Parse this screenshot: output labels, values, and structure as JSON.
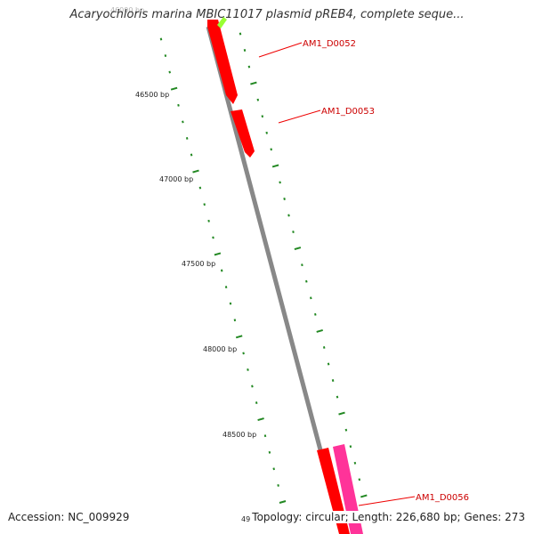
{
  "title": "Acaryochloris marina MBIC11017 plasmid pREB4, complete seque...",
  "accession": "Accession: NC_009929",
  "topology": "Topology: circular; Length: 226,680 bp; Genes: 273",
  "tick_labels": [
    {
      "text": "46000 bp",
      "bp": 46000,
      "faded": true
    },
    {
      "text": "46500 bp",
      "bp": 46500
    },
    {
      "text": "47000 bp",
      "bp": 47000
    },
    {
      "text": "47500 bp",
      "bp": 47500
    },
    {
      "text": "48000 bp",
      "bp": 48000
    },
    {
      "text": "48500 bp",
      "bp": 48500
    },
    {
      "text": "49",
      "bp": 49000,
      "partial": true
    }
  ],
  "genes": [
    {
      "label": "AM1_D0052",
      "strand": "forward",
      "color": "#ff0000"
    },
    {
      "label": "AM1_D0053",
      "strand": "forward",
      "color": "#ff0000"
    },
    {
      "label": "AM1_D0056",
      "strand": "reverse",
      "color": "#ff3399"
    }
  ],
  "colors": {
    "backbone": "#888888",
    "forward_gene": "#ff0000",
    "reverse_gene": "#ff3399",
    "reverse_gene_top": "#99ff33",
    "ticks": "#228822",
    "label_line": "#ee0000"
  }
}
